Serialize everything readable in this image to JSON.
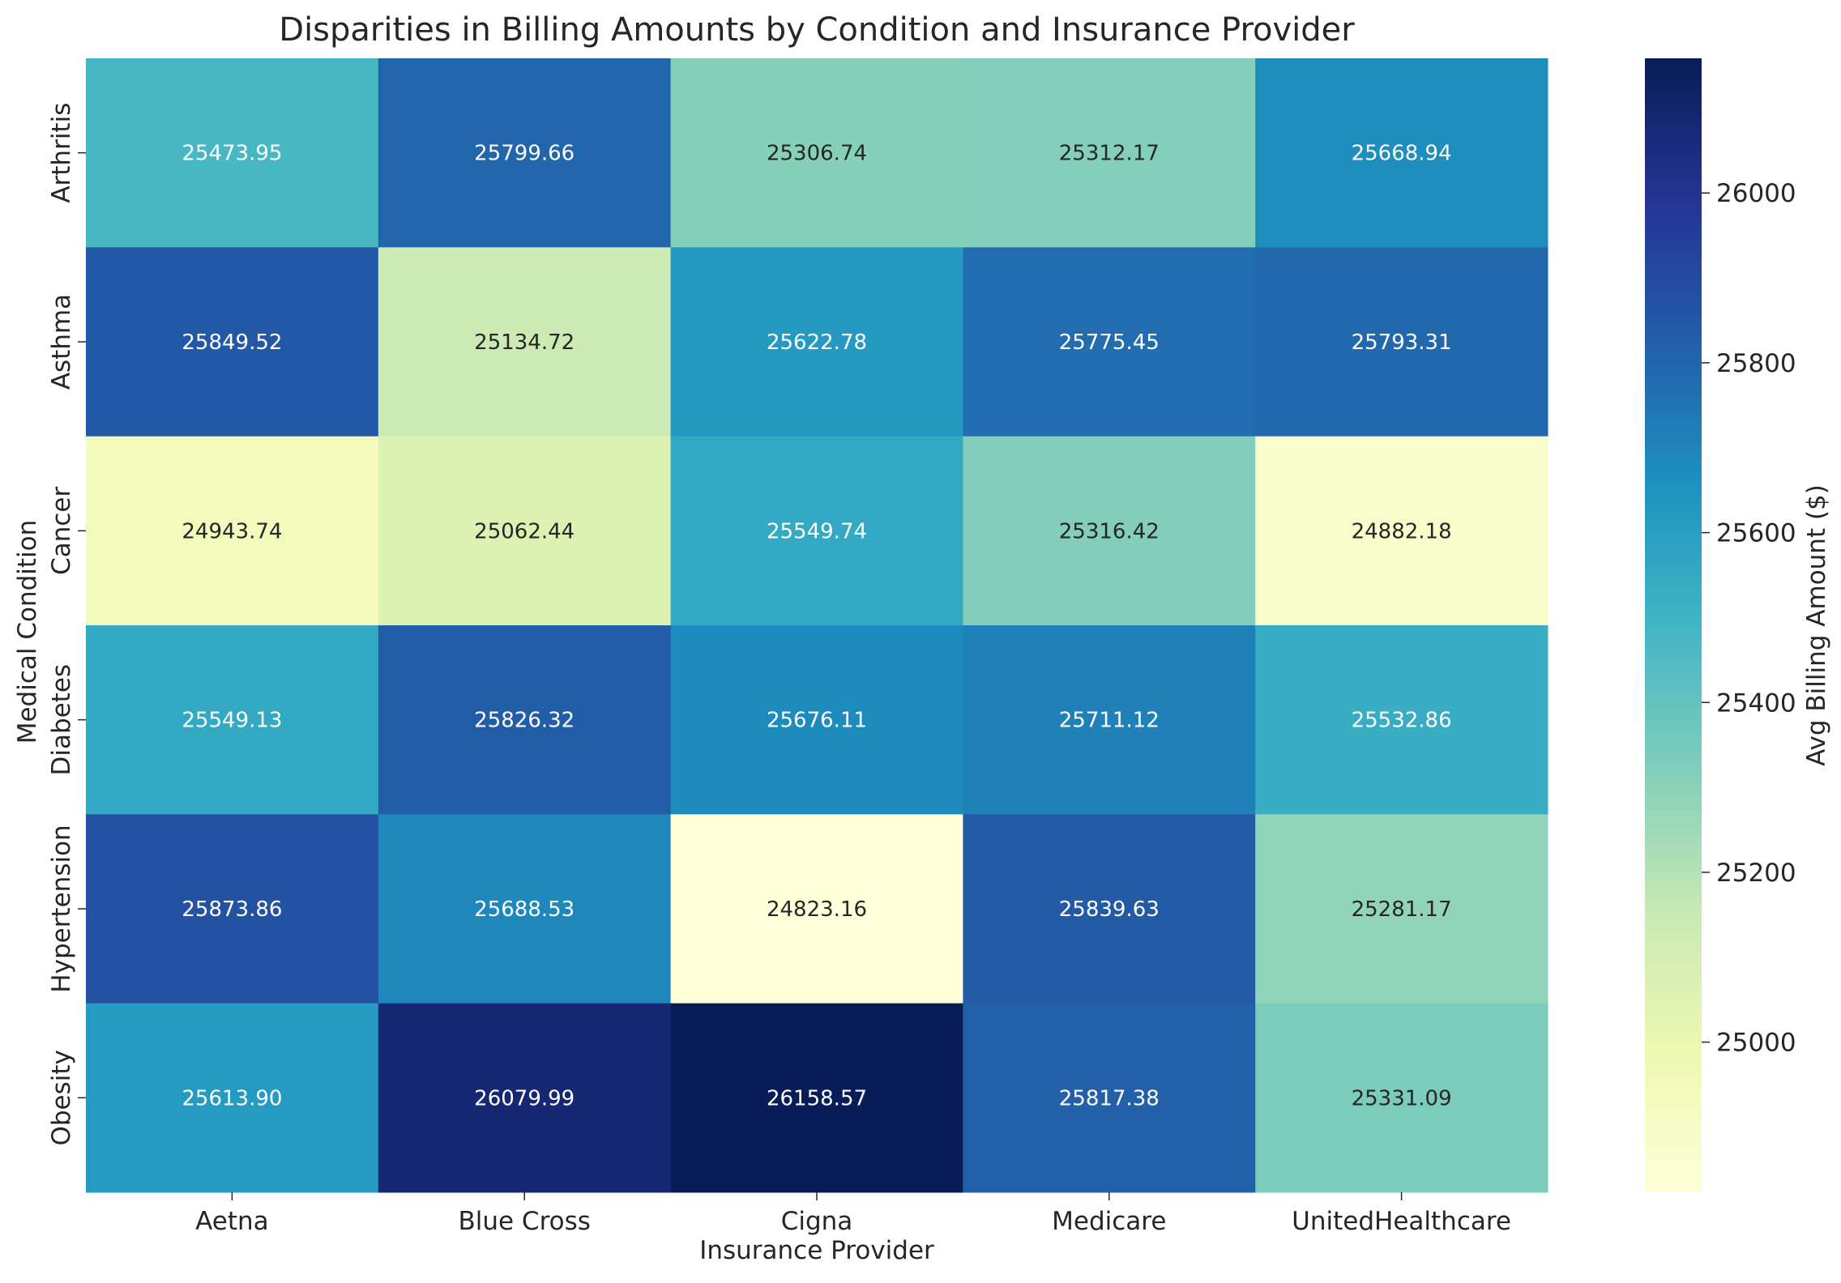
{
  "chart_data": {
    "type": "heatmap",
    "title": "Disparities in Billing Amounts by Condition and Insurance Provider",
    "xlabel": "Insurance Provider",
    "ylabel": "Medical Condition",
    "x_categories": [
      "Aetna",
      "Blue Cross",
      "Cigna",
      "Medicare",
      "UnitedHealthcare"
    ],
    "y_categories": [
      "Arthritis",
      "Asthma",
      "Cancer",
      "Diabetes",
      "Hypertension",
      "Obesity"
    ],
    "values": [
      [
        25473.95,
        25799.66,
        25306.74,
        25312.17,
        25668.94
      ],
      [
        25849.52,
        25134.72,
        25622.78,
        25775.45,
        25793.31
      ],
      [
        24943.74,
        25062.44,
        25549.74,
        25316.42,
        24882.18
      ],
      [
        25549.13,
        25826.32,
        25676.11,
        25711.12,
        25532.86
      ],
      [
        25873.86,
        25688.53,
        24823.16,
        25839.63,
        25281.17
      ],
      [
        25613.9,
        26079.99,
        26158.57,
        25817.38,
        25331.09
      ]
    ],
    "value_format": "2 decimals",
    "colormap": "YlGnBu",
    "colorbar": {
      "label": "Avg Billing Amount ($)",
      "ticks": [
        "25000",
        "25200",
        "25400",
        "25600",
        "25800",
        "26000"
      ],
      "range": [
        24823.16,
        26158.57
      ]
    },
    "colors": {
      "ramp": [
        "#ffffd9",
        "#edf8b1",
        "#c7e9b4",
        "#7fcdbb",
        "#41b6c4",
        "#1d91c0",
        "#225ea8",
        "#253494",
        "#081d58"
      ],
      "light_text": "#ffffff",
      "dark_text": "#262626"
    }
  }
}
